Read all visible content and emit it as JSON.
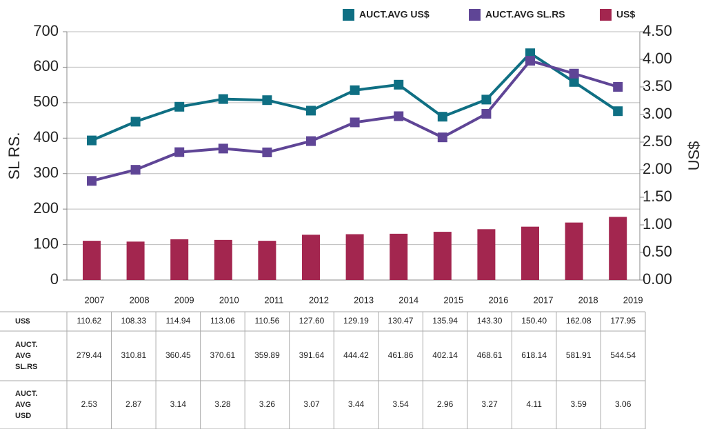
{
  "chart_data": {
    "type": "bar_line",
    "y_label": "SL RS.",
    "y2_label": "US$",
    "categories": [
      "2007",
      "2008",
      "2009",
      "2010",
      "2011",
      "2012",
      "2013",
      "2014",
      "2015",
      "2016",
      "2017",
      "2018",
      "2019"
    ],
    "ylim": [
      0,
      700
    ],
    "yticks": [
      0,
      100,
      200,
      300,
      400,
      500,
      600,
      700
    ],
    "y2lim": [
      0,
      4.5
    ],
    "y2ticks": [
      {
        "value": 0,
        "label": "0.00"
      },
      {
        "value": 0.5,
        "label": "0.50"
      },
      {
        "value": 1,
        "label": "1.00"
      },
      {
        "value": 1.5,
        "label": "1.50"
      },
      {
        "value": 2,
        "label": "2.00"
      },
      {
        "value": 2.5,
        "label": "2.50"
      },
      {
        "value": 3,
        "label": "3.00"
      },
      {
        "value": 3.5,
        "label": "3.50"
      },
      {
        "value": 4,
        "label": "4.00"
      },
      {
        "value": 4.5,
        "label": "4.50"
      }
    ],
    "grid": true,
    "series": [
      {
        "name": "AUCT.AVG US$",
        "type": "line",
        "axis": "y2",
        "color": "#0f6f83",
        "table_label": "AUCT. AVG USD",
        "values": [
          2.53,
          2.87,
          3.14,
          3.28,
          3.26,
          3.07,
          3.44,
          3.54,
          2.96,
          3.27,
          4.11,
          3.59,
          3.06
        ]
      },
      {
        "name": "AUCT.AVG SL.RS",
        "type": "line",
        "axis": "y",
        "color": "#5f4596",
        "table_label": "AUCT. AVG SL.RS",
        "values": [
          279.44,
          310.81,
          360.45,
          370.61,
          359.89,
          391.64,
          444.42,
          461.86,
          402.14,
          468.61,
          618.14,
          581.91,
          544.54
        ]
      },
      {
        "name": "US$",
        "type": "bar",
        "axis": "y",
        "color": "#a3264f",
        "table_label": "US$",
        "values": [
          110.62,
          108.33,
          114.94,
          113.06,
          110.56,
          127.6,
          129.19,
          130.47,
          135.94,
          143.3,
          150.4,
          162.08,
          177.95
        ],
        "value_labels": [
          "110.62",
          "108.33",
          "114.94",
          "113.06",
          "110.56",
          "127.60",
          "129.19",
          "130.47",
          "135.94",
          "143.30",
          "150.40",
          "162.08",
          "177.95"
        ]
      }
    ]
  }
}
